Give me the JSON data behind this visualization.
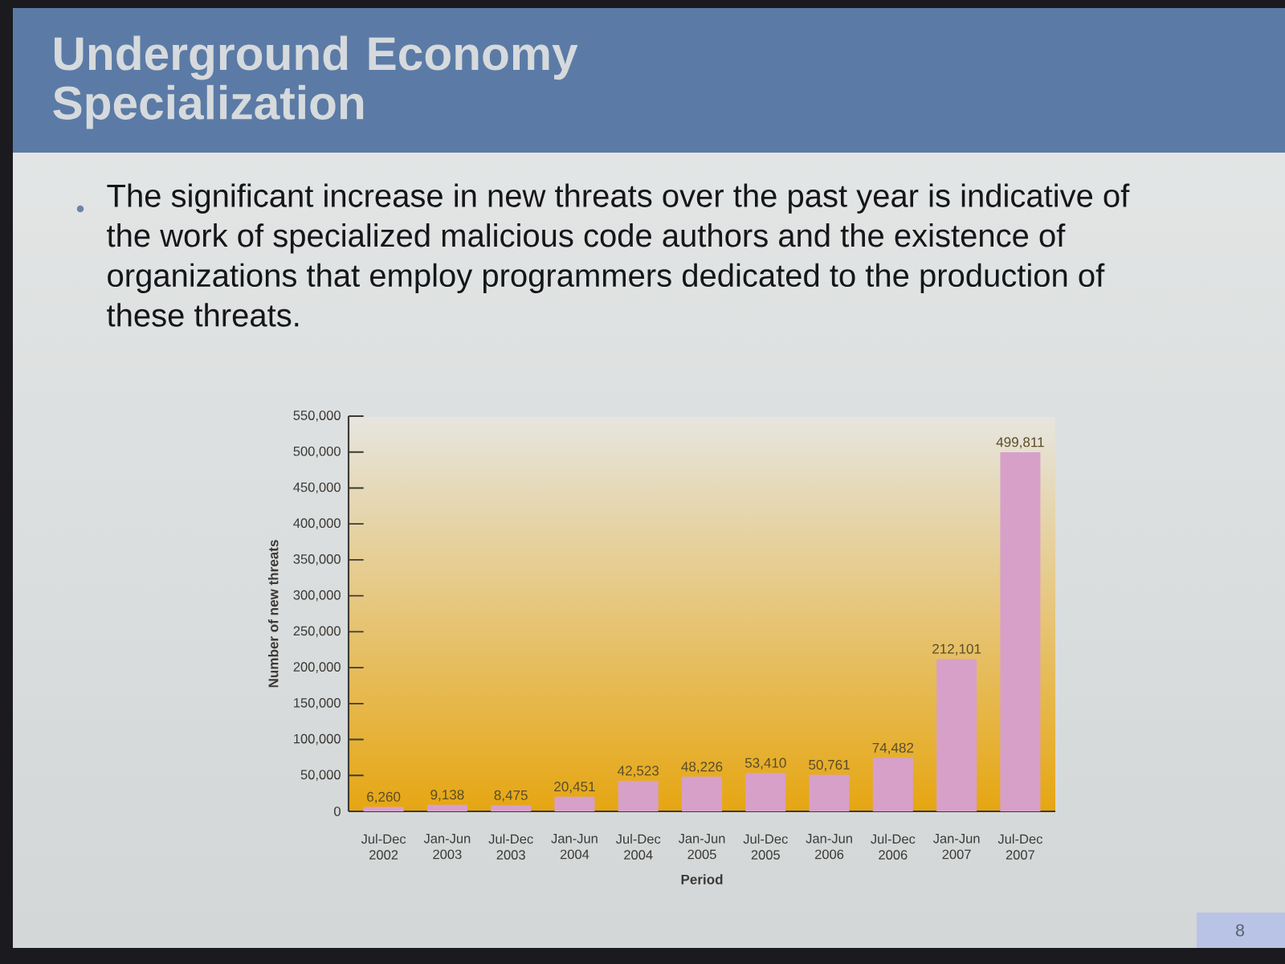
{
  "chart_data": {
    "type": "bar",
    "title": "Underground Economy Specialization",
    "subtitle": "The significant increase in new threats over the past year is indicative of the work of specialized malicious code authors and the existence of organizations that employ programmers dedicated to the production of these threats.",
    "xlabel": "Period",
    "ylabel": "Number of new threats",
    "categories": [
      "Jul-Dec 2002",
      "Jan-Jun 2003",
      "Jul-Dec 2003",
      "Jan-Jun 2004",
      "Jul-Dec 2004",
      "Jan-Jun 2005",
      "Jul-Dec 2005",
      "Jan-Jun 2006",
      "Jul-Dec 2006",
      "Jan-Jun 2007",
      "Jul-Dec 2007"
    ],
    "values": [
      6260,
      9138,
      8475,
      20451,
      42523,
      48226,
      53410,
      50761,
      74482,
      212101,
      499811
    ],
    "value_labels": [
      "6,260",
      "9,138",
      "8,475",
      "20,451",
      "42,523",
      "48,226",
      "53,410",
      "50,761",
      "74,482",
      "212,101",
      "499,811"
    ],
    "color": "#d7a0c9",
    "ylim": [
      0,
      550000
    ],
    "yticks": [
      0,
      {
        "value": 50000,
        "label": "50,000"
      },
      {
        "value": 100000,
        "label": "100,000"
      },
      {
        "value": 150000,
        "label": "150,000"
      },
      {
        "value": 200000,
        "label": "200,000"
      },
      {
        "value": 250000,
        "label": "250,000"
      },
      {
        "value": 300000,
        "label": "300,000"
      },
      {
        "value": 350000,
        "label": "350,000"
      },
      {
        "value": 400000,
        "label": "400,000"
      },
      {
        "value": 450000,
        "label": "450,000"
      },
      {
        "value": 500000,
        "label": "500,000"
      },
      {
        "value": 550000,
        "label": "550,000"
      }
    ],
    "annotations": [
      "8"
    ]
  }
}
